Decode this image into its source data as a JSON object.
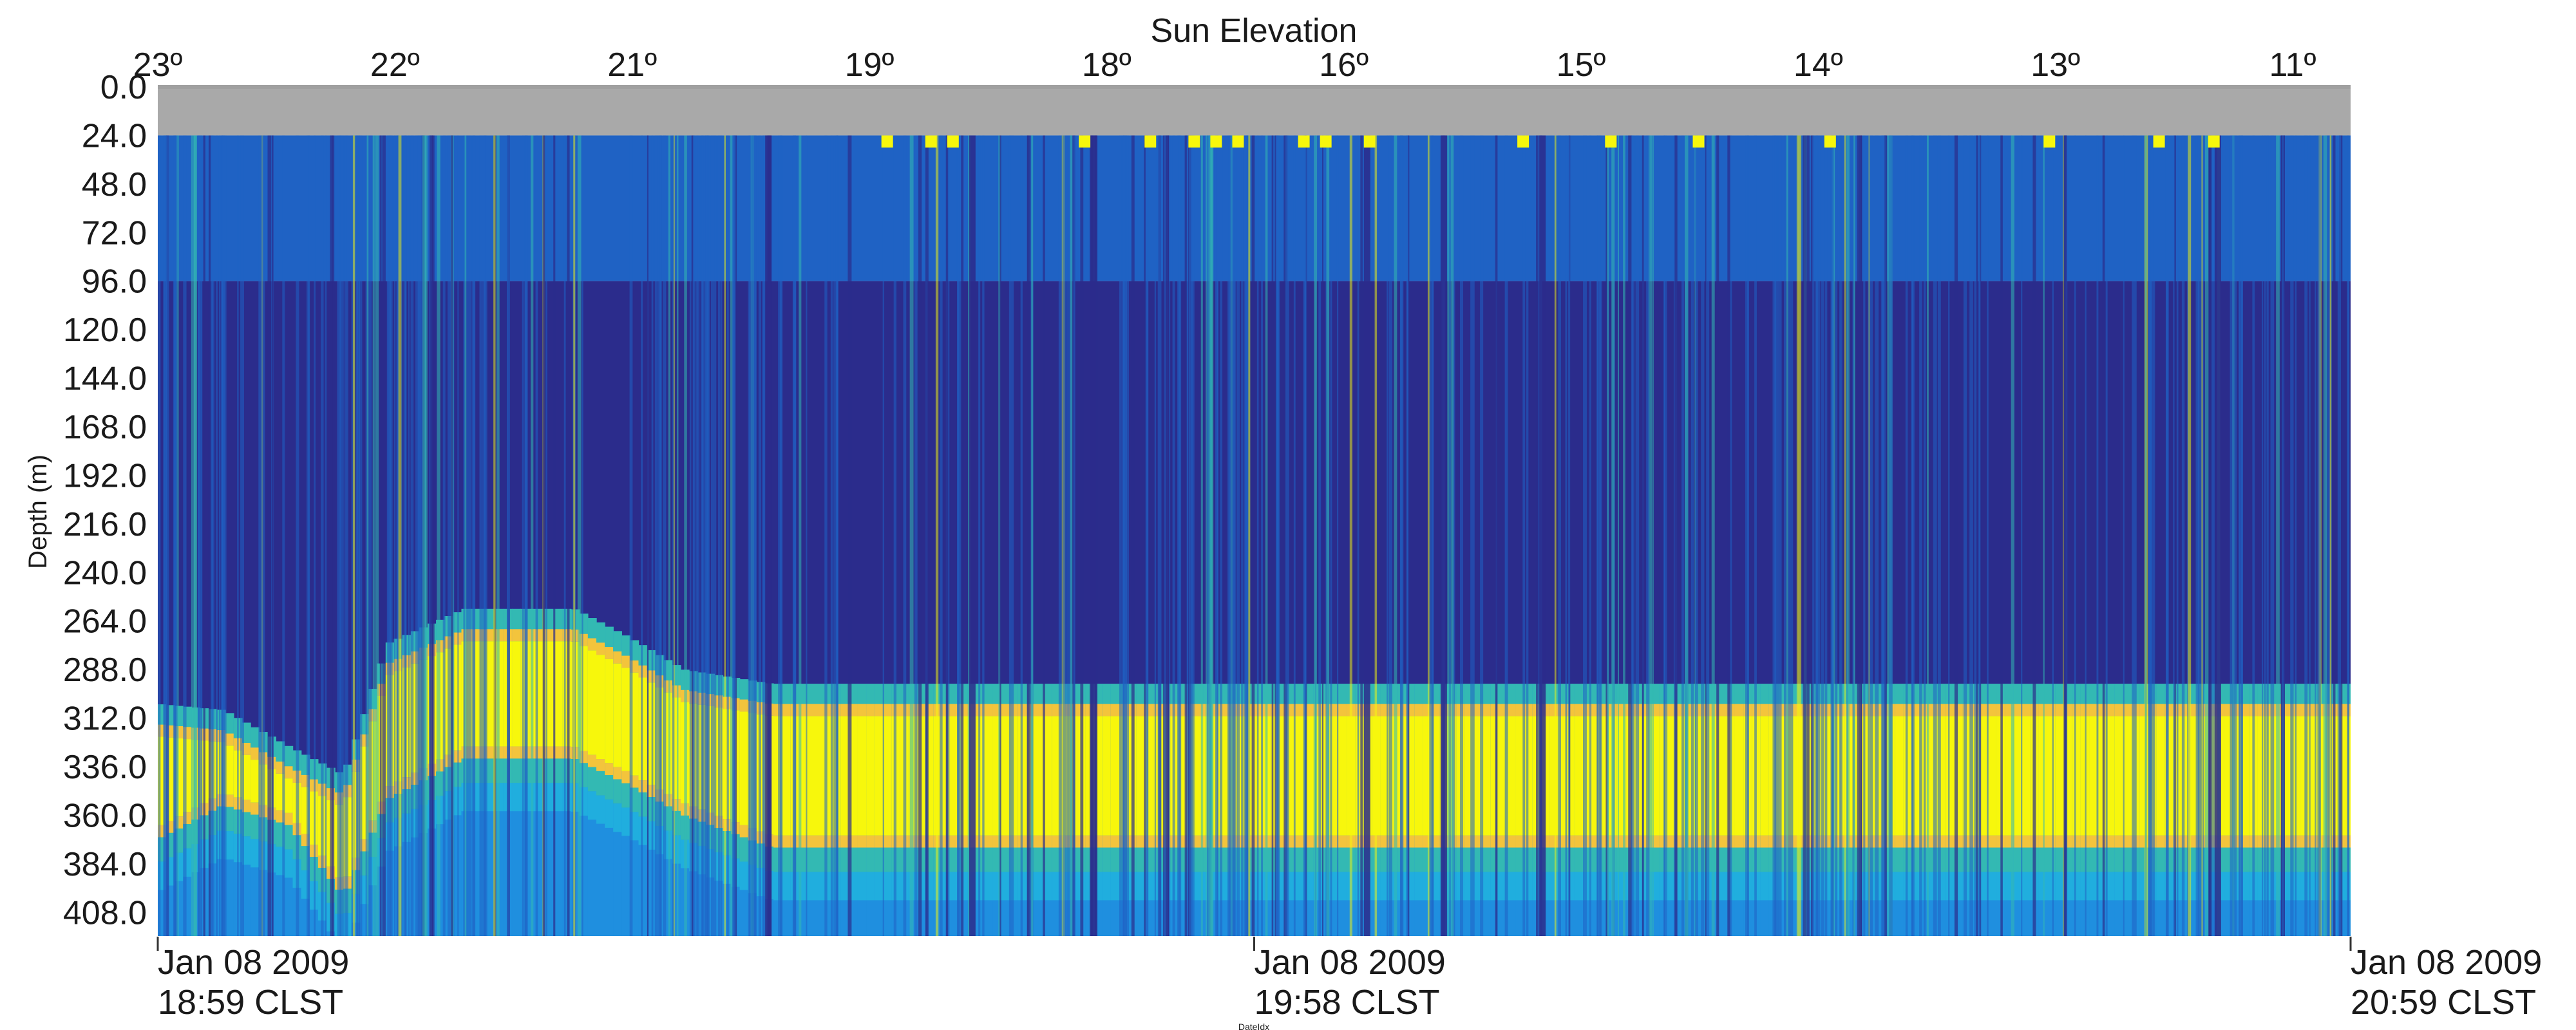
{
  "chart_data": {
    "type": "heatmap",
    "title": "",
    "top_axis_title": "Sun Elevation",
    "top_ticks": [
      "23º",
      "22º",
      "21º",
      "19º",
      "18º",
      "16º",
      "15º",
      "14º",
      "13º",
      "11º"
    ],
    "ylabel": "Depth (m)",
    "xlabel": "DateIdx",
    "y_ticks": [
      "0.0",
      "24.0",
      "48.0",
      "72.0",
      "96.0",
      "120.0",
      "144.0",
      "168.0",
      "192.0",
      "216.0",
      "240.0",
      "264.0",
      "288.0",
      "312.0",
      "336.0",
      "360.0",
      "384.0",
      "408.0"
    ],
    "ylim": [
      0,
      420
    ],
    "y_inverted": true,
    "x_ticks": [
      {
        "date": "Jan 08 2009",
        "time": "18:59 CLST"
      },
      {
        "date": "Jan 08 2009",
        "time": "19:58 CLST"
      },
      {
        "date": "Jan 08 2009",
        "time": "20:59 CLST"
      }
    ],
    "colors": {
      "grey": "#a9a9a9",
      "navy": "#2b2c8c",
      "blue": "#1f62c4",
      "lightblue": "#1f8fdf",
      "cyan": "#20aede",
      "teal": "#33b9b3",
      "yellow": "#f7f70c",
      "orange": "#f3c43c"
    },
    "strong_layer": {
      "depth_start": [
        [
          0.0,
          315
        ],
        [
          0.03,
          318
        ],
        [
          0.06,
          336
        ],
        [
          0.085,
          350
        ],
        [
          0.105,
          285
        ],
        [
          0.14,
          268
        ],
        [
          0.19,
          268
        ],
        [
          0.215,
          282
        ],
        [
          0.24,
          298
        ],
        [
          0.28,
          305
        ],
        [
          1.0,
          305
        ]
      ],
      "depth_end": [
        [
          0.0,
          372
        ],
        [
          0.03,
          355
        ],
        [
          0.06,
          365
        ],
        [
          0.085,
          400
        ],
        [
          0.105,
          352
        ],
        [
          0.14,
          332
        ],
        [
          0.19,
          332
        ],
        [
          0.215,
          345
        ],
        [
          0.24,
          360
        ],
        [
          0.28,
          376
        ],
        [
          1.0,
          376
        ]
      ]
    },
    "surface_patches": [
      0.33,
      0.35,
      0.36,
      0.42,
      0.45,
      0.47,
      0.48,
      0.49,
      0.52,
      0.53,
      0.55,
      0.62,
      0.66,
      0.7,
      0.76,
      0.86,
      0.91,
      0.935
    ]
  }
}
